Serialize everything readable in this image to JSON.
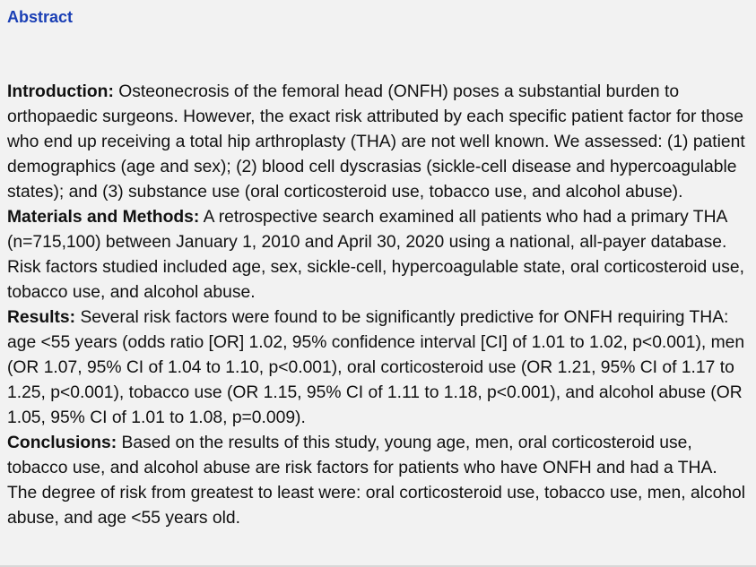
{
  "title": "Abstract",
  "sections": [
    {
      "label": "Introduction:",
      "text": "Osteonecrosis of the femoral head (ONFH) poses a substantial burden to orthopaedic surgeons. However, the exact risk attributed by each specific patient factor for those who end up receiving a total hip arthroplasty (THA) are not well known. We assessed: (1) patient demographics (age and sex); (2) blood cell dyscrasias (sickle-cell disease and hypercoagulable states); and (3) substance use (oral corticosteroid use, tobacco use, and alcohol abuse)."
    },
    {
      "label": "Materials and Methods:",
      "text": "A retrospective search examined all patients who had a primary THA (n=715,100) between January 1, 2010 and April 30, 2020 using a national, all-payer database. Risk factors studied included age, sex, sickle-cell, hypercoagulable state, oral corticosteroid use, tobacco use, and alcohol abuse."
    },
    {
      "label": "Results:",
      "text": "Several risk factors were found to be significantly predictive for ONFH requiring THA: age <55 years (odds ratio [OR] 1.02, 95% confidence interval [CI] of 1.01 to 1.02, p<0.001), men (OR 1.07, 95% CI of 1.04 to 1.10, p<0.001), oral corticosteroid use (OR 1.21, 95% CI of 1.17 to 1.25, p<0.001), tobacco use (OR 1.15, 95% CI of 1.11 to 1.18, p<0.001), and alcohol abuse (OR 1.05, 95% CI of 1.01 to 1.08, p=0.009)."
    },
    {
      "label": "Conclusions:",
      "text": "Based on the results of this study, young age, men, oral corticosteroid use, tobacco use, and alcohol abuse are risk factors for patients who have ONFH and had a THA. The degree of risk from greatest to least were: oral corticosteroid use, tobacco use, men, alcohol abuse, and age <55 years old."
    }
  ]
}
